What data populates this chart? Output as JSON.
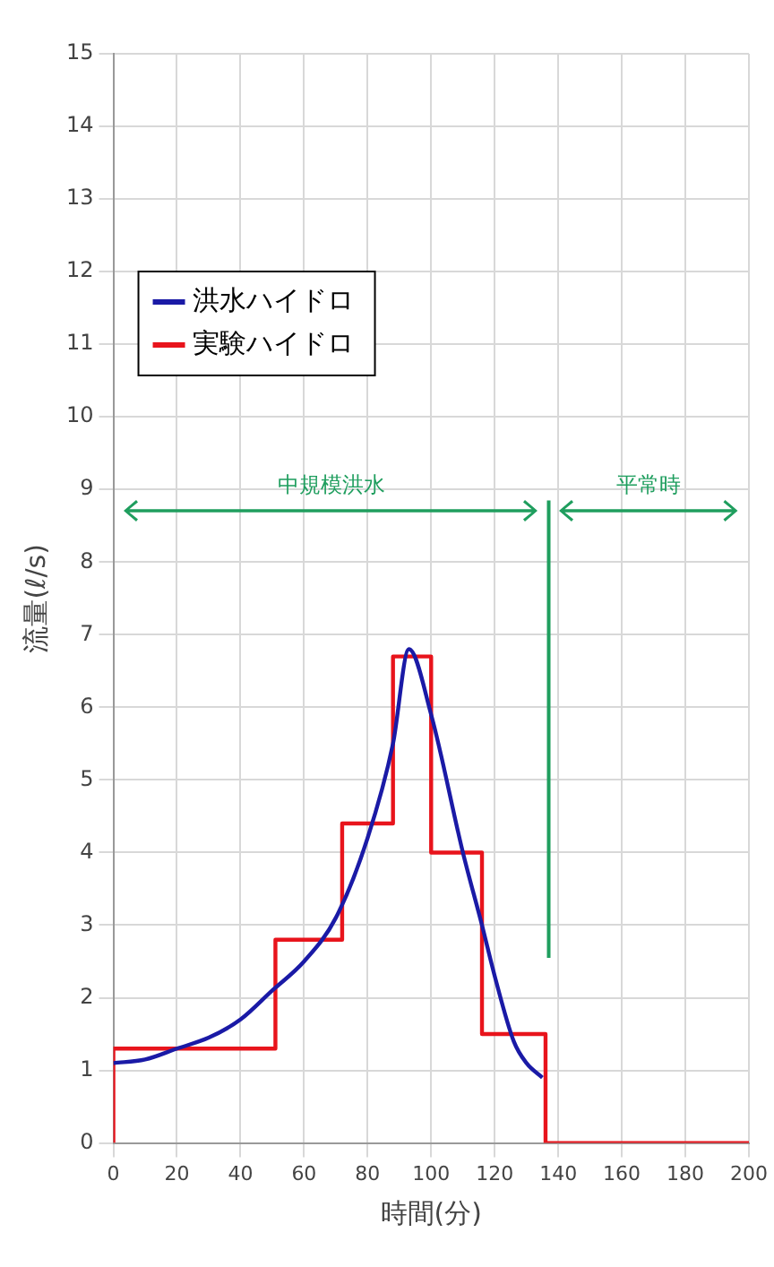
{
  "chart_data": {
    "type": "line",
    "xlabel": "時間(分)",
    "ylabel": "流量(ℓ/s)",
    "xlim": [
      0,
      200
    ],
    "xticks": [
      0,
      20,
      40,
      60,
      80,
      100,
      120,
      140,
      160,
      180,
      200
    ],
    "ylim": [
      0,
      15
    ],
    "yticks": [
      0,
      1,
      2,
      3,
      4,
      5,
      6,
      7,
      8,
      9,
      10,
      11,
      12,
      13,
      14,
      15
    ],
    "grid": true,
    "legend": "top left",
    "marker": "none",
    "series": [
      {
        "name": "洪水ハイドロ",
        "color": "#1a1aa6",
        "x": [
          0,
          10,
          20,
          30,
          40,
          50,
          60,
          70,
          80,
          88,
          93,
          100,
          110,
          116,
          120,
          126,
          130,
          135
        ],
        "values": [
          1.1,
          1.15,
          1.3,
          1.45,
          1.7,
          2.1,
          2.5,
          3.1,
          4.2,
          5.5,
          6.8,
          5.9,
          4.0,
          3.0,
          2.3,
          1.4,
          1.1,
          0.9
        ]
      },
      {
        "name": "実験ハイドロ",
        "type": "step",
        "color": "#e8141c",
        "x": [
          0,
          0,
          51,
          72,
          88,
          100,
          116,
          136,
          200
        ],
        "values": [
          0,
          1.3,
          2.8,
          4.4,
          6.7,
          4.0,
          1.5,
          0,
          0
        ]
      }
    ],
    "ref_lines": [
      {
        "axis": "x",
        "value": 137,
        "color": "#1f9e5e"
      }
    ],
    "annotations": [
      "中規模洪水",
      "平常時"
    ]
  }
}
